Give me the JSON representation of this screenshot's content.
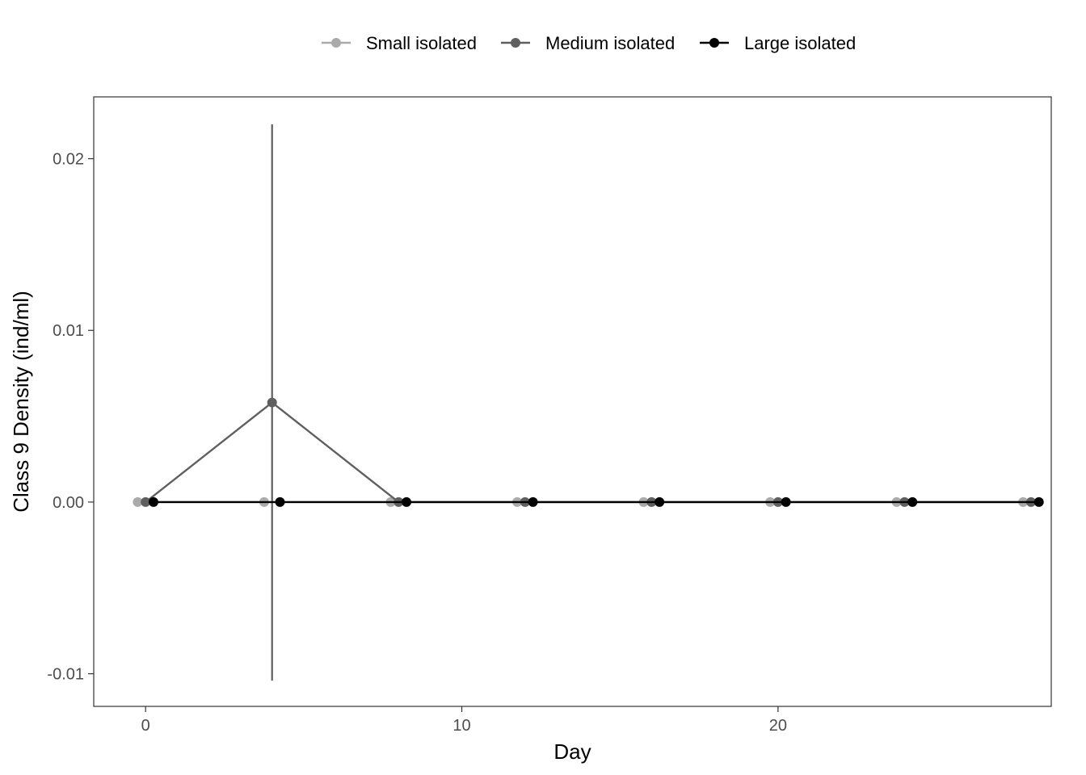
{
  "chart_data": {
    "type": "line",
    "title": "",
    "xlabel": "Day",
    "ylabel": "Class 9 Density (ind/ml)",
    "xlim": [
      -1.64,
      28.64
    ],
    "ylim": [
      -0.0119,
      0.0236
    ],
    "x_ticks": [
      0,
      10,
      20
    ],
    "y_ticks": [
      -0.01,
      0.0,
      0.01,
      0.02
    ],
    "x_tick_labels": [
      "0",
      "10",
      "20"
    ],
    "y_tick_labels": [
      "-0.01",
      "0.00",
      "0.01",
      "0.02"
    ],
    "grid": false,
    "legend_position": "top",
    "series": [
      {
        "name": "Small isolated",
        "color": "#aaaaaa",
        "x": [
          0,
          4,
          8,
          12,
          16,
          20,
          24,
          28
        ],
        "y": [
          0,
          0,
          0,
          0,
          0,
          0,
          0,
          0
        ],
        "error": [
          0,
          0,
          0,
          0,
          0,
          0,
          0,
          0
        ]
      },
      {
        "name": "Medium isolated",
        "color": "#5f5f5f",
        "x": [
          0,
          4,
          8,
          12,
          16,
          20,
          24,
          28
        ],
        "y": [
          0,
          0.0058,
          0,
          0,
          0,
          0,
          0,
          0
        ],
        "error": [
          0,
          0.0162,
          0,
          0,
          0,
          0,
          0,
          0
        ]
      },
      {
        "name": "Large isolated",
        "color": "#000000",
        "x": [
          0,
          4,
          8,
          12,
          16,
          20,
          24,
          28
        ],
        "y": [
          0,
          0,
          0,
          0,
          0,
          0,
          0,
          0
        ],
        "error": [
          0,
          0,
          0,
          0,
          0,
          0,
          0,
          0
        ]
      }
    ]
  }
}
